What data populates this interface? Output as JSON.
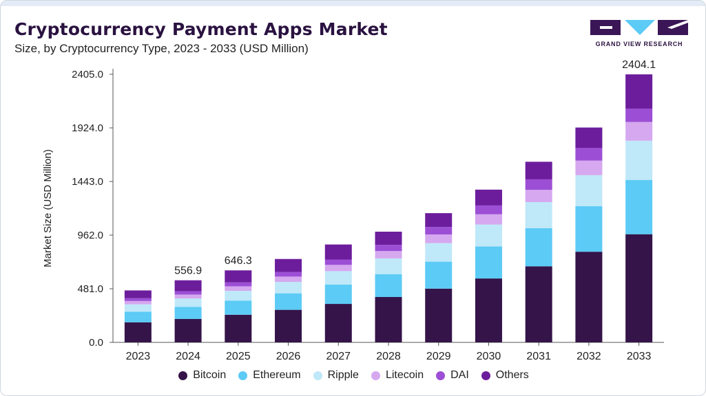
{
  "header": {
    "title": "Cryptocurrency Payment Apps Market",
    "subtitle": "Size, by Cryptocurrency Type, 2023 - 2033 (USD Million)",
    "logo_text": "GRAND VIEW RESEARCH"
  },
  "colors": {
    "Bitcoin": "#341449",
    "Ethereum": "#5ccbf5",
    "Ripple": "#bfe8f9",
    "Litecoin": "#d5a8ef",
    "DAI": "#9c4fd5",
    "Others": "#6c1d9c"
  },
  "chart_data": {
    "type": "bar",
    "stacked": true,
    "categories": [
      "2023",
      "2024",
      "2025",
      "2026",
      "2027",
      "2028",
      "2029",
      "2030",
      "2031",
      "2032",
      "2033"
    ],
    "series": [
      {
        "name": "Bitcoin",
        "values": [
          180,
          210,
          248,
          292,
          345,
          407,
          482,
          573,
          682,
          813,
          970
        ]
      },
      {
        "name": "Ethereum",
        "values": [
          95,
          109,
          127,
          148,
          174,
          205,
          242,
          287,
          342,
          408,
          487
        ]
      },
      {
        "name": "Ripple",
        "values": [
          66,
          75,
          87,
          102,
          120,
          141,
          166,
          197,
          234,
          279,
          352
        ]
      },
      {
        "name": "Litecoin",
        "values": [
          30,
          35,
          41,
          48,
          56,
          66,
          78,
          92,
          110,
          131,
          168
        ]
      },
      {
        "name": "DAI",
        "values": [
          25,
          30,
          35,
          41,
          48,
          56,
          67,
          79,
          94,
          112,
          120
        ]
      },
      {
        "name": "Others",
        "values": [
          70,
          98,
          108,
          117,
          135,
          118,
          124,
          142,
          158,
          184,
          307
        ]
      }
    ],
    "totals": [
      466,
      556.9,
      646.3,
      748,
      878,
      993,
      1159,
      1370,
      1620,
      1927,
      2404.1
    ],
    "data_labels": [
      {
        "category": "2024",
        "text": "556.9"
      },
      {
        "category": "2025",
        "text": "646.3"
      },
      {
        "category": "2033",
        "text": "2404.1"
      }
    ],
    "title": "Cryptocurrency Payment Apps Market",
    "xlabel": "",
    "ylabel": "Market Size (USD Million)",
    "ylim": [
      0,
      2405.0
    ],
    "yticks": [
      "0.0",
      "481.0",
      "962.0",
      "1443.0",
      "1924.0",
      "2405.0"
    ],
    "grid": false,
    "legend": "bottom"
  }
}
